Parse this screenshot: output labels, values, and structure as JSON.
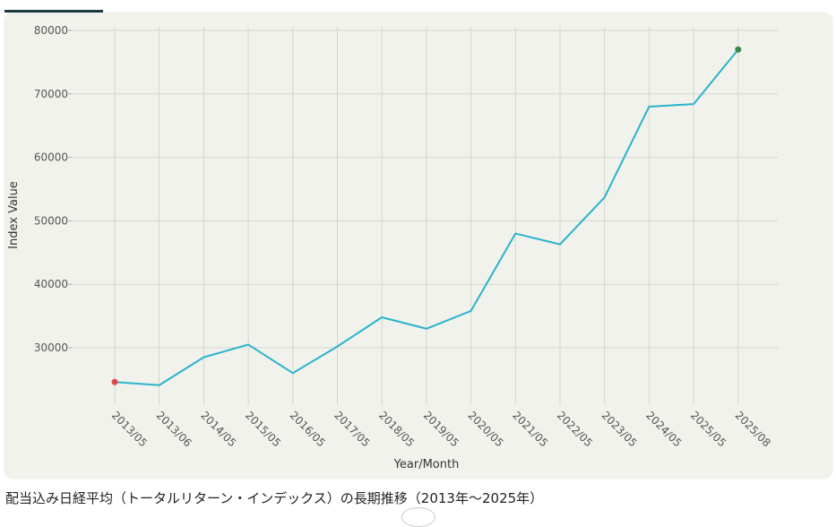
{
  "tab": {
    "active_index": 0
  },
  "caption": "配当込み日経平均（トータルリターン・インデックス）の長期推移（2013年～2025年）",
  "colors": {
    "line": "#2ab3cc",
    "start_point": "#e04848",
    "end_point": "#3a8a4a",
    "grid": "#d6d6d0"
  },
  "chart_data": {
    "type": "line",
    "title": "",
    "xlabel": "Year/Month",
    "ylabel": "Index Value",
    "ylim": [
      20000,
      80000
    ],
    "yticks": [
      30000,
      40000,
      50000,
      60000,
      70000,
      80000
    ],
    "grid": true,
    "categories": [
      "2013/05",
      "2013/06",
      "2014/05",
      "2015/05",
      "2016/05",
      "2017/05",
      "2018/05",
      "2019/05",
      "2020/05",
      "2021/05",
      "2022/05",
      "2023/05",
      "2024/05",
      "2025/05",
      "2025/08"
    ],
    "series": [
      {
        "values": [
          24600,
          24100,
          28500,
          30500,
          26000,
          30200,
          34800,
          33000,
          35800,
          48000,
          46300,
          53700,
          68000,
          68400,
          77000
        ]
      }
    ]
  }
}
